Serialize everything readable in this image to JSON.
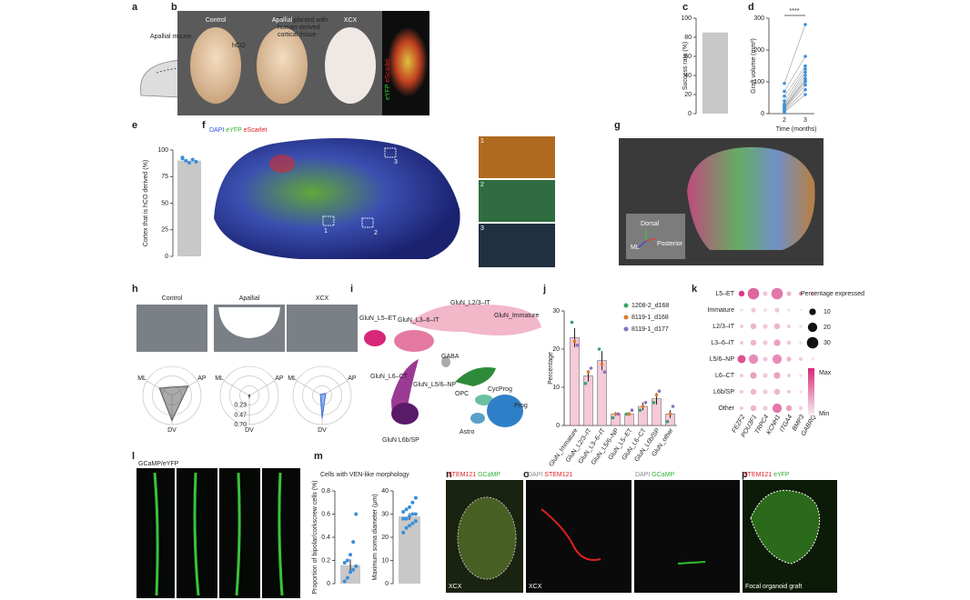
{
  "panels": {
    "a": {
      "letter": "a",
      "mouse": "Apallial mouse",
      "hco": "hCO",
      "transplant": [
        "Transplanted with",
        "human-derived",
        "cortical tissue"
      ]
    },
    "b": {
      "letter": "b",
      "groups": [
        "Control",
        "Apallial",
        "XCX"
      ],
      "channels": [
        "eYFP",
        "eScarlet"
      ]
    },
    "c": {
      "letter": "c",
      "type": "bar",
      "ylabel": "Success rate (%)",
      "ylim": [
        0,
        100
      ],
      "yticks": [
        0,
        20,
        40,
        60,
        80,
        100
      ],
      "values": [
        85
      ],
      "color": "#c8c8c8"
    },
    "d": {
      "letter": "d",
      "type": "paired",
      "significance": "****",
      "ylabel": "Graft volume (mm³)",
      "xlabel": "Time (months)",
      "x": [
        2,
        3
      ],
      "ylim": [
        0,
        300
      ],
      "yticks": [
        0,
        100,
        200,
        300
      ],
      "color": "#3b8fd9",
      "pairs": [
        [
          5,
          60
        ],
        [
          8,
          75
        ],
        [
          12,
          90
        ],
        [
          15,
          100
        ],
        [
          18,
          105
        ],
        [
          20,
          110
        ],
        [
          25,
          120
        ],
        [
          30,
          130
        ],
        [
          40,
          140
        ],
        [
          55,
          150
        ],
        [
          70,
          180
        ],
        [
          95,
          280
        ]
      ]
    },
    "e": {
      "letter": "e",
      "type": "bar",
      "ylabel": "Cortex that is hCO derived (%)",
      "ylim": [
        0,
        100
      ],
      "yticks": [
        0,
        25,
        50,
        75,
        100
      ],
      "values": [
        90
      ],
      "points": [
        92,
        90,
        88,
        91,
        89,
        93
      ],
      "color": "#c8c8c8",
      "point_color": "#3b8fd9"
    },
    "f": {
      "letter": "f",
      "channels": [
        "DAPI",
        "eYFP",
        "eScarlet"
      ],
      "insets": [
        "1",
        "2",
        "3"
      ]
    },
    "g": {
      "letter": "g",
      "axes": [
        "Dorsal",
        "ML",
        "Posterior"
      ]
    },
    "h": {
      "letter": "h",
      "groups": [
        "Control",
        "Apallial",
        "XCX"
      ],
      "radar_axes": [
        "ML",
        "AP",
        "DV"
      ],
      "rings": [
        0.23,
        0.47,
        {
          "value": 0.7,
          "label": "0.70"
        }
      ],
      "radar": [
        [
          0.35,
          0.45,
          0.6
        ],
        [
          0.02,
          0.02,
          0.05
        ],
        [
          0.05,
          0.1,
          0.55
        ]
      ],
      "colors": [
        "#555555",
        "#555555",
        "#3b6fd9"
      ]
    },
    "i": {
      "letter": "i",
      "clusters": [
        "GluN_L5–ET",
        "GluN_L2/3–IT",
        "GluN_Immature",
        "GluN_L3–6–IT",
        "GABA",
        "GluN_L6–CT",
        "GluN_L5/6–NP",
        "CycProg",
        "OPC",
        "Prog",
        "Astro",
        "GluN L6b/SP"
      ]
    },
    "j": {
      "letter": "j",
      "type": "bar",
      "ylabel": "Percentage",
      "ylim": [
        0,
        30
      ],
      "yticks": [
        0,
        10,
        20,
        30
      ],
      "categories": [
        "GluN_Immature",
        "GluN_L2/3–IT",
        "GluN_L3–6–IT",
        "GluN_L5/6–NP",
        "GluN_L5–ET",
        "GluN_L6–CT",
        "GluN_L6b/SP",
        "GluN_other"
      ],
      "values": [
        23,
        13,
        17,
        3,
        3,
        5,
        7,
        3
      ],
      "errors": [
        2.5,
        1.5,
        2.5,
        0.5,
        0.5,
        1,
        1.5,
        1
      ],
      "color": "#f6c9d8",
      "series": [
        {
          "name": "1208-2_d168",
          "color": "#3aa36b",
          "values": [
            27,
            11,
            20,
            2,
            3,
            4,
            6,
            1
          ]
        },
        {
          "name": "8119-1_d168",
          "color": "#e07b2c",
          "values": [
            22,
            14,
            16,
            3,
            3,
            5,
            8,
            3
          ]
        },
        {
          "name": "8119-1_d177",
          "color": "#8a70c4",
          "values": [
            21,
            15,
            14,
            3,
            4,
            6,
            9,
            5
          ]
        }
      ]
    },
    "k": {
      "letter": "k",
      "type": "dotplot",
      "rows": [
        "L5–ET",
        "Immature",
        "L2/3–IT",
        "L3–6–IT",
        "L5/6–NP",
        "L6–CT",
        "L6b/SP",
        "Other"
      ],
      "genes": [
        "FEZF2",
        "POU3F1",
        "TRPC4",
        "KCNH1",
        "ITGA4",
        "BMP3",
        "GABRQ"
      ],
      "sizes": [
        [
          8,
          30,
          5,
          30,
          5,
          3,
          3
        ],
        [
          2,
          5,
          3,
          5,
          2,
          1,
          1
        ],
        [
          3,
          8,
          5,
          8,
          3,
          2,
          1
        ],
        [
          3,
          8,
          5,
          10,
          4,
          2,
          1
        ],
        [
          15,
          20,
          5,
          20,
          5,
          3,
          2
        ],
        [
          3,
          10,
          5,
          10,
          3,
          2,
          1
        ],
        [
          3,
          8,
          5,
          8,
          3,
          2,
          1
        ],
        [
          3,
          8,
          5,
          20,
          8,
          3,
          1
        ]
      ],
      "expression": [
        [
          0.9,
          0.7,
          0.2,
          0.6,
          0.3,
          0.5,
          0.4
        ],
        [
          0.1,
          0.2,
          0.1,
          0.2,
          0.1,
          0.1,
          0.1
        ],
        [
          0.2,
          0.3,
          0.2,
          0.3,
          0.2,
          0.1,
          0.1
        ],
        [
          0.2,
          0.3,
          0.2,
          0.4,
          0.2,
          0.1,
          0.1
        ],
        [
          0.8,
          0.5,
          0.2,
          0.5,
          0.3,
          0.2,
          0.1
        ],
        [
          0.2,
          0.4,
          0.2,
          0.4,
          0.2,
          0.1,
          0.1
        ],
        [
          0.2,
          0.3,
          0.2,
          0.3,
          0.2,
          0.1,
          0.1
        ],
        [
          0.2,
          0.3,
          0.2,
          0.6,
          0.4,
          0.2,
          0.1
        ]
      ],
      "legend_title": "Percentage expressed",
      "legend_sizes": [
        10,
        20,
        30
      ],
      "scale": [
        "Max",
        "Min"
      ]
    },
    "l": {
      "letter": "l",
      "channels": "GCaMP/eYFP"
    },
    "m": {
      "letter": "m",
      "title": "Cells with VEN-like morphology",
      "left": {
        "type": "bar",
        "ylabel": "Proportion of bipolar/corkscrew cells (%)",
        "ylim": [
          0,
          0.8
        ],
        "yticks": [
          0,
          0.2,
          0.4,
          0.6,
          0.8
        ],
        "values": [
          0.16
        ],
        "errors": [
          0.05
        ],
        "points": [
          0.02,
          0.05,
          0.1,
          0.12,
          0.15,
          0.18,
          0.2,
          0.25,
          0.36,
          0.6
        ]
      },
      "right": {
        "type": "bar",
        "ylabel": "Maximum soma diameter (μm)",
        "ylim": [
          0,
          40
        ],
        "yticks": [
          0,
          10,
          20,
          30,
          40
        ],
        "values": [
          29
        ],
        "errors": [
          1.5
        ],
        "points": [
          22,
          24,
          25,
          26,
          27,
          28,
          28,
          29,
          30,
          30,
          31,
          32,
          33,
          35,
          37
        ]
      },
      "color": "#c8c8c8",
      "point_color": "#3b8fd9"
    },
    "n": {
      "letter": "n",
      "channels": [
        "STEM121",
        "GCaMP"
      ],
      "group": "XCX"
    },
    "o": {
      "letter": "o",
      "left": [
        "DAPI",
        "STEM121"
      ],
      "right": [
        "DAPI",
        "GCaMP"
      ],
      "group": "XCX"
    },
    "p": {
      "letter": "p",
      "channels": [
        "STEM121",
        "eYFP"
      ],
      "caption": "Focal organoid graft"
    }
  }
}
